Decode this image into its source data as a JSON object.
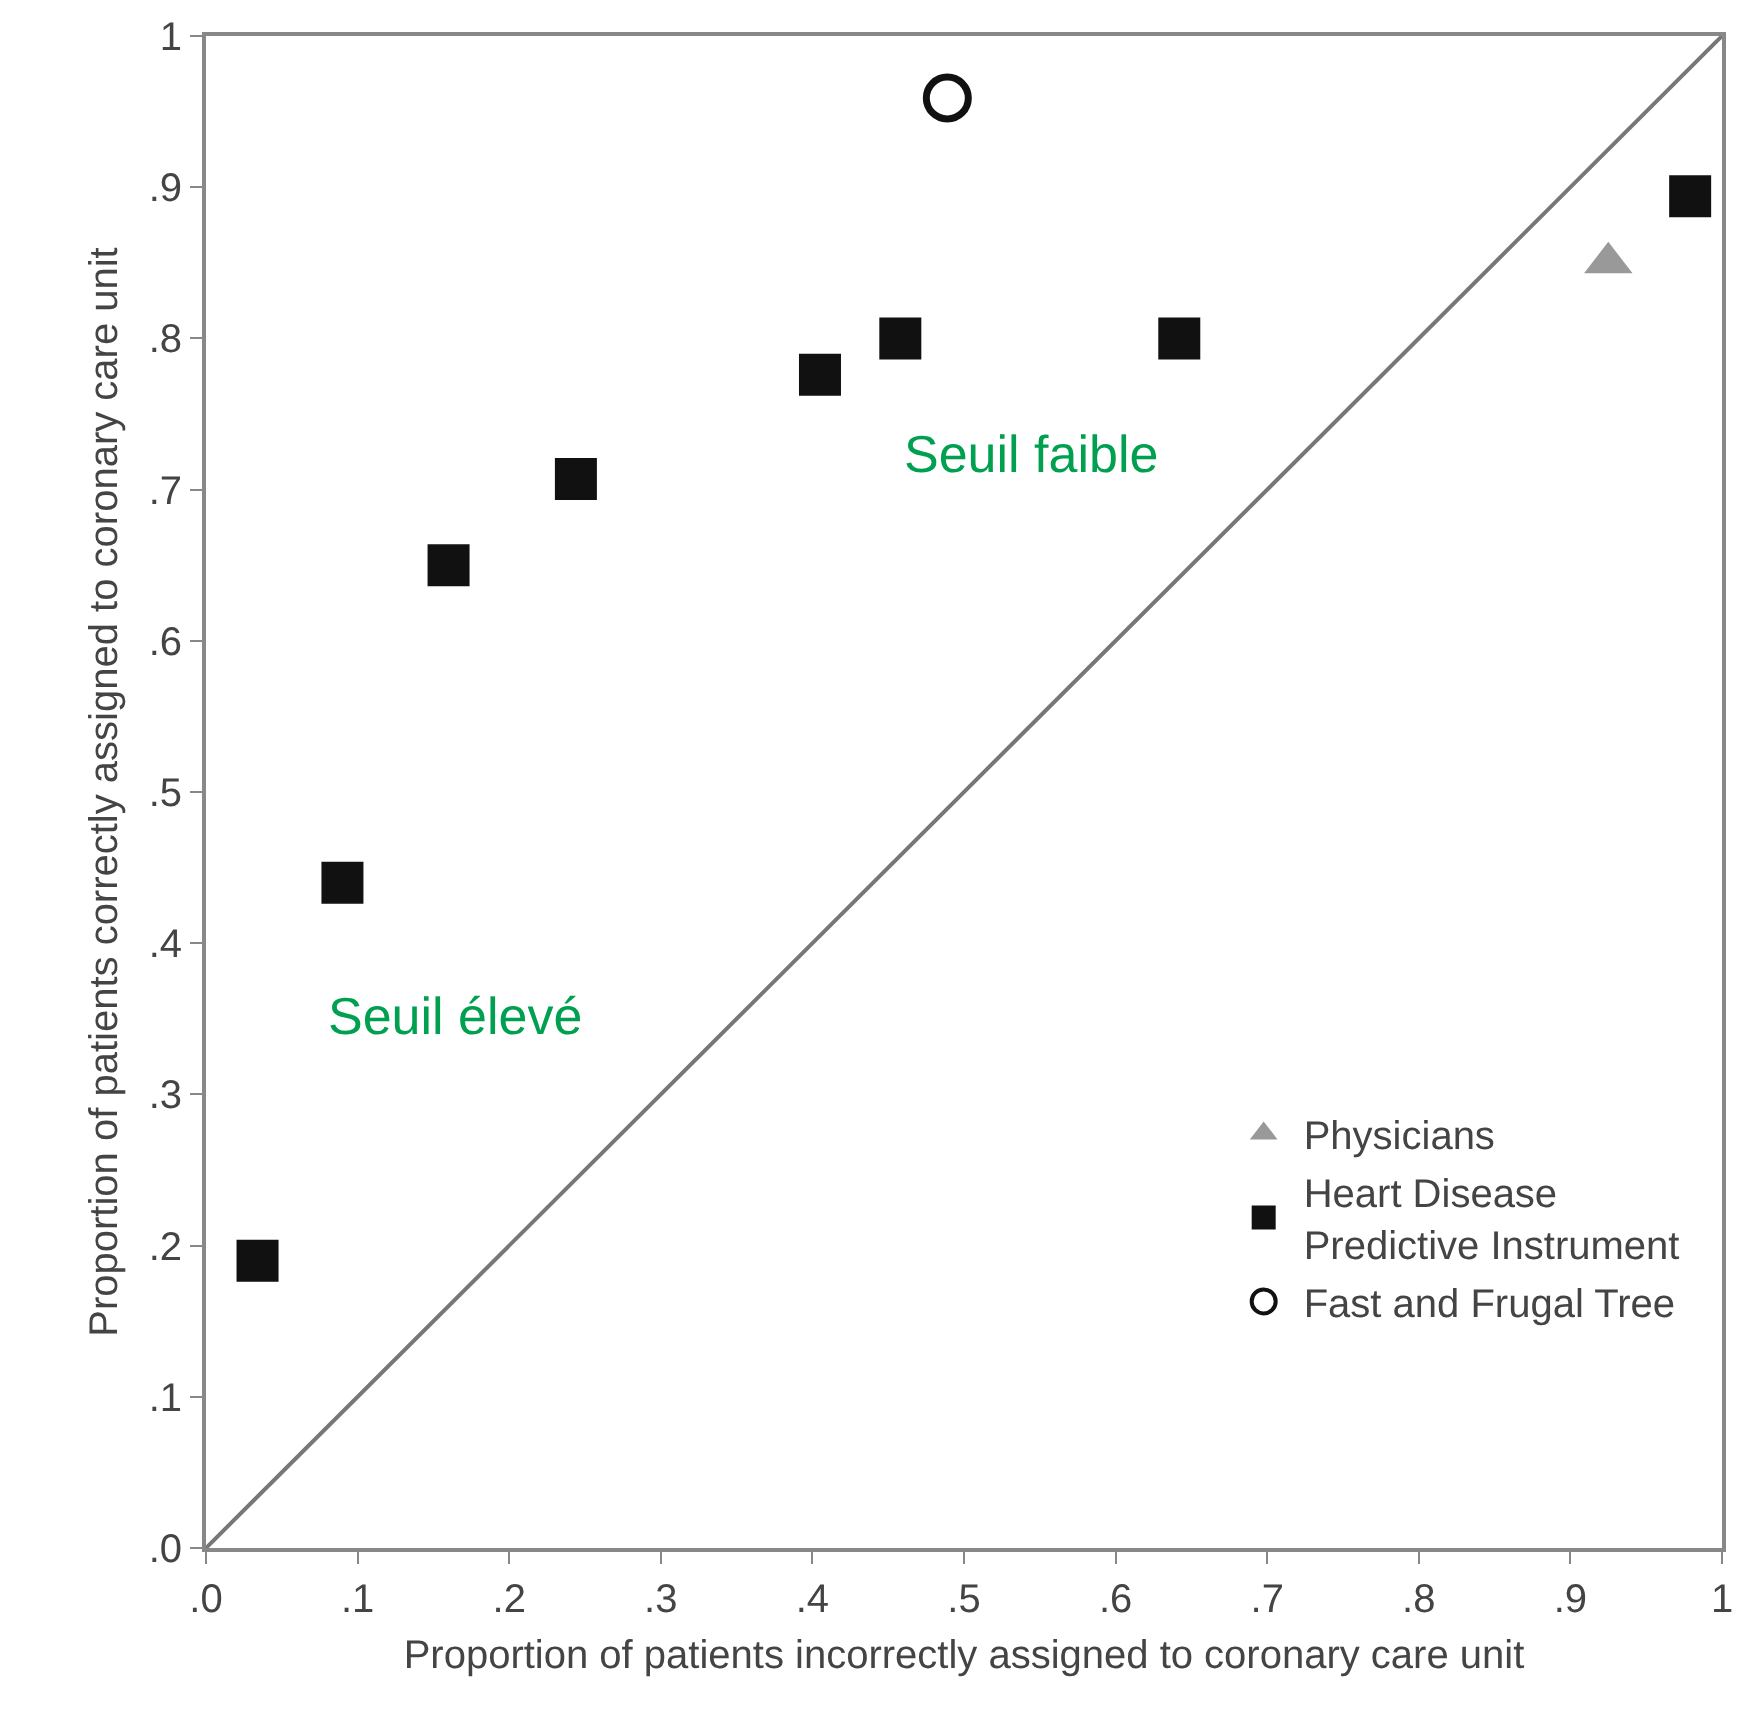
{
  "chart_data": {
    "type": "scatter",
    "xlabel": "Proportion of patients incorrectly assigned to coronary care unit",
    "ylabel": "Proportion of patients correctly assigned to coronary care unit",
    "series": [
      {
        "type": "line",
        "color": "#777777",
        "x": [
          0,
          1
        ],
        "values": [
          0,
          1
        ],
        "marker": "none",
        "line_style": "solid"
      },
      {
        "name": "Physicians",
        "color": "#999999",
        "marker": "triangle",
        "x": [
          0.925
        ],
        "values": [
          0.85
        ]
      },
      {
        "name": "Heart Disease Predictive Instrument",
        "color": "#111111",
        "marker": "square",
        "x": [
          0.034,
          0.09,
          0.16,
          0.244,
          0.405,
          0.458,
          0.642,
          0.979
        ],
        "values": [
          0.19,
          0.44,
          0.65,
          0.707,
          0.776,
          0.8,
          0.8,
          0.894
        ]
      },
      {
        "name": "Fast and Frugal Tree",
        "color": "#111111",
        "marker": "circle",
        "x": [
          0.489
        ],
        "values": [
          0.959
        ]
      }
    ],
    "annotations": [
      "Seuil faible",
      "Seuil élevé"
    ],
    "xlim": [
      0,
      1
    ],
    "ylim": [
      0,
      1
    ],
    "xticks": [
      {
        "value": 0,
        "label": ".0"
      },
      {
        "value": 0.1,
        "label": ".1"
      },
      {
        "value": 0.2,
        "label": ".2"
      },
      {
        "value": 0.3,
        "label": ".3"
      },
      {
        "value": 0.4,
        "label": ".4"
      },
      {
        "value": 0.5,
        "label": ".5"
      },
      {
        "value": 0.6,
        "label": ".6"
      },
      {
        "value": 0.7,
        "label": ".7"
      },
      {
        "value": 0.8,
        "label": ".8"
      },
      {
        "value": 0.9,
        "label": ".9"
      },
      1
    ],
    "yticks": [
      {
        "value": 0,
        "label": ".0"
      },
      {
        "value": 0.1,
        "label": ".1"
      },
      {
        "value": 0.2,
        "label": ".2"
      },
      {
        "value": 0.3,
        "label": ".3"
      },
      {
        "value": 0.4,
        "label": ".4"
      },
      {
        "value": 0.5,
        "label": ".5"
      },
      {
        "value": 0.6,
        "label": ".6"
      },
      {
        "value": 0.7,
        "label": ".7"
      },
      {
        "value": 0.8,
        "label": ".8"
      },
      {
        "value": 0.9,
        "label": ".9"
      },
      1
    ],
    "grid": false,
    "legend": "bottom right"
  }
}
